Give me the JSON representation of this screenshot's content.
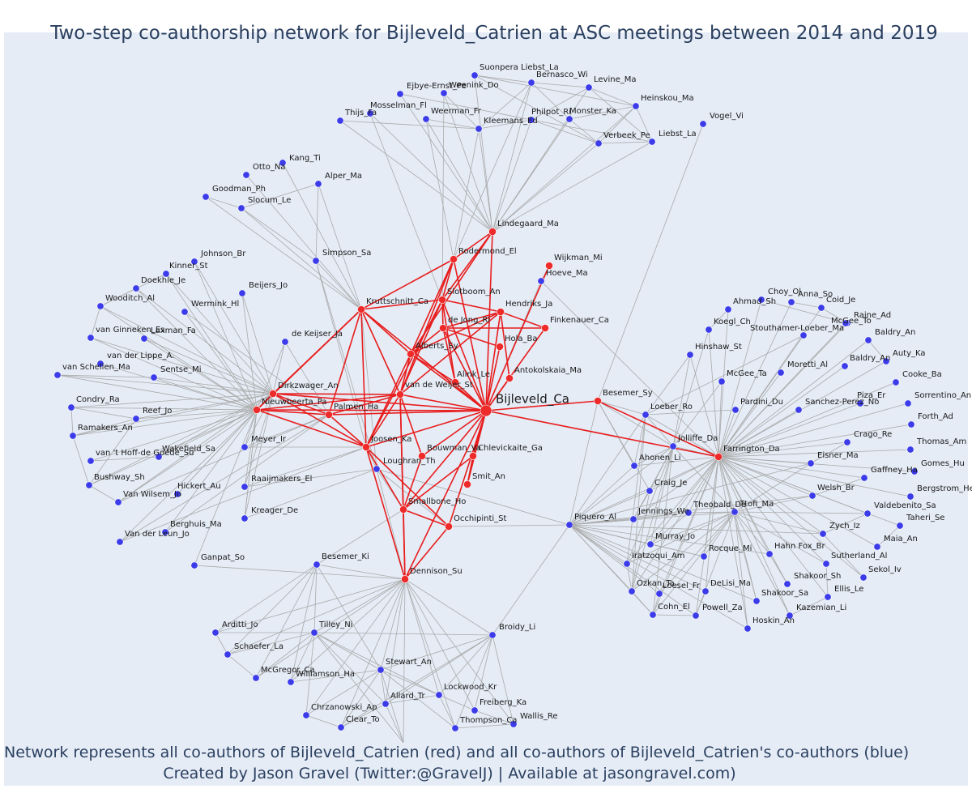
{
  "title": "Two-step co-authorship network for Bijleveld_Catrien at ASC meetings between 2014 and 2019",
  "captions": [
    "Network represents all co-authors of Bijleveld_Catrien (red) and all co-authors of Bijleveld_Catrien's co-authors (blue)",
    "Created by Jason Gravel (Twitter:@GravelJ) | Available at jasongravel.com)"
  ],
  "colors": {
    "background": "#e5ecf6",
    "red_node": "#ee2a2a",
    "blue_node": "#3b3bea",
    "red_edge": "#e81d1d",
    "grey_edge": "#aaaaaa",
    "text": "#2a3f5f"
  },
  "network": {
    "center": "Bijleveld_Ca",
    "red_nodes": [
      "Bijleveld_Ca",
      "Lindegaard_Ma",
      "Rodermond_El",
      "Wijkman_Mi",
      "Slotboom_An",
      "Kruttschnitt_Ca",
      "Hendriks_Ja",
      "de Jong_Ri",
      "Finkenauer_Ca",
      "Hola_Ba",
      "Alberts_Sy",
      "Antokolskaia_Ma",
      "Alink_Le",
      "van de Weijer_St",
      "Dirkzwager_An",
      "Nieuwbeerta_Pa",
      "Palmen_Ha",
      "Joosen_Ka",
      "Bouwman_Va",
      "Chlevickaite_Ga",
      "Smit_An",
      "Smallbone_Ho",
      "Occhipinti_St",
      "Dennison_Su",
      "Besemer_Sy",
      "Farrington_Da"
    ],
    "blue_nodes": [
      "Suonpera Liebst_La",
      "Bernasco_Wi",
      "Levine_Ma",
      "Ejbye-Ernst_Pe",
      "Weenink_Do",
      "Heinskou_Ma",
      "Mosselman_Fl",
      "Weerman_Fr",
      "Monster_Ka",
      "Thijs_Fa",
      "Philpot_Ri",
      "Kleemans_Ed",
      "Verbeek_Pe",
      "Liebst_La",
      "Vogel_Vi",
      "Kang_Ti",
      "Otto_Na",
      "Alper_Ma",
      "Goodman_Ph",
      "Slocum_Le",
      "Simpson_Sa",
      "Johnson_Br",
      "Kinner_St",
      "Doekhie_Je",
      "Beijers_Jo",
      "Wooditch_Al",
      "Wermink_Hl",
      "van Ginneken_Es",
      "Laxman_Fa",
      "de Keijser_Ja",
      "van der Lippe_A.",
      "van Schellen_Ma",
      "Sentse_Mi",
      "Condry_Ra",
      "Reef_Jo",
      "Ramakers_An",
      "Meyer_Ir",
      "Wakefield_Sa",
      "van 't Hoff-de Goede_Su",
      "Bushway_Sh",
      "Hickert_Au",
      "Van Wilsem_Jo",
      "Raaijmakers_El",
      "Kreager_De",
      "Loughran_Th",
      "Berghuis_Ma",
      "Van der Leun_Jo",
      "Ganpat_So",
      "Hoeve_Ma",
      "Choy_Ol",
      "Anna_So",
      "Ahmad_Sh",
      "Coid_Je",
      "Raine_Ad",
      "Koegl_Ch",
      "McGee_To",
      "Stouthamer-Loeber_Ma",
      "Baldry_An",
      "Hinshaw_St",
      "Auty_Ka",
      "Baldry_An",
      "Moretti_Al",
      "McGee_Ta",
      "Cooke_Ba",
      "Piza_Er",
      "Sorrentino_An",
      "Pardini_Du",
      "Sanchez-Perez_No",
      "Loeber_Ro",
      "Forth_Ad",
      "Crago_Re",
      "Jolliffe_Da",
      "Thomas_Am",
      "Eisner_Ma",
      "Ahonen_Li",
      "Gaffney_Ha",
      "Gomes_Hu",
      "Craig_Je",
      "Welsh_Br",
      "Bergstrom_He",
      "Valdebenito_Sa",
      "Piquero_Al",
      "Jennings_We",
      "Theobald_De",
      "Ttofi_Ma",
      "Taheri_Se",
      "Zych_Iz",
      "Maia_An",
      "Murray_Jo",
      "Hahn Fox_Br",
      "Rocque_Mi",
      "Iratzoqui_Am",
      "Sutherland_Al",
      "Sekol_Iv",
      "Shakoor_Sh",
      "Ozkan_Ta",
      "Loesel_Fr",
      "DeLisi_Ma",
      "Ellis_Le",
      "Shakoor_Sa",
      "Cohn_El",
      "Powell_Za",
      "Kazemian_Li",
      "Hoskin_An",
      "Besemer_Ki",
      "Arditti_Jo",
      "Tilley_Ni",
      "Broidy_Li",
      "Schaefer_La",
      "McGregor_Ca",
      "Williamson_Ha",
      "Stewart_An",
      "Lockwood_Kr",
      "Allard_Tr",
      "Chrzanowski_Ap",
      "Freiberg_Ka",
      "Clear_To",
      "Thompson_Ca",
      "Wallis_Re"
    ]
  }
}
